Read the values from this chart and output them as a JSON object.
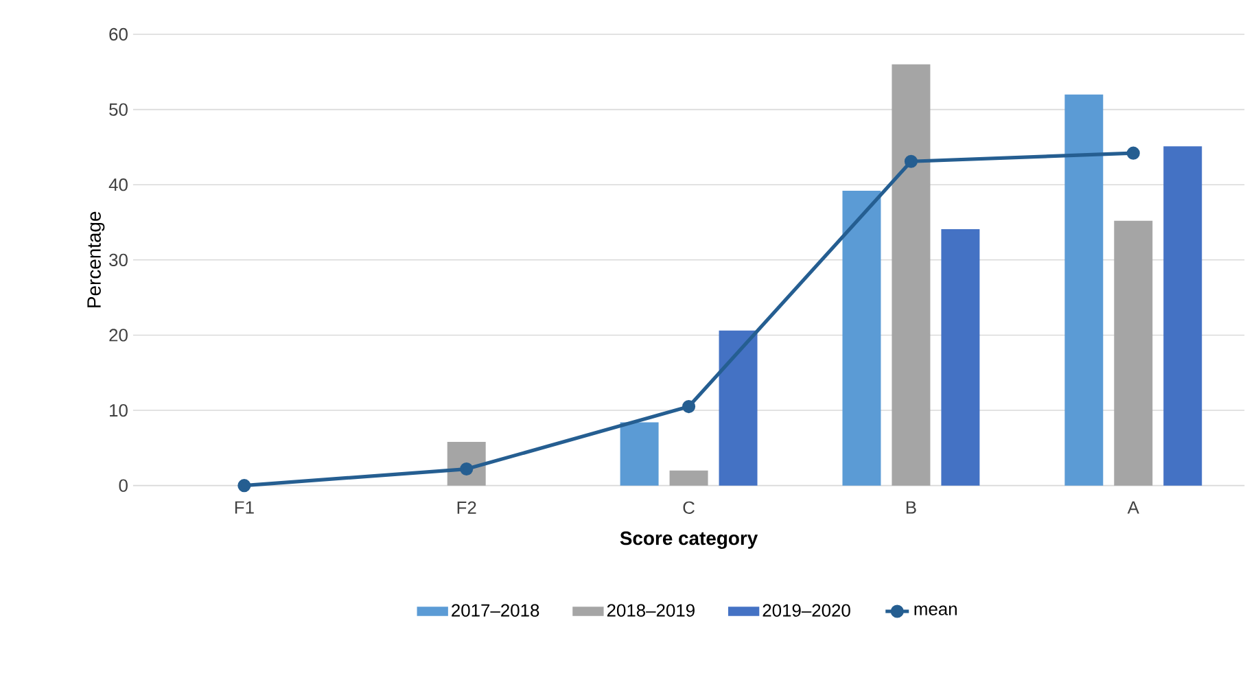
{
  "chart_data": {
    "type": "bar",
    "xlabel": "Score category",
    "ylabel": "Percentage",
    "categories": [
      "F1",
      "F2",
      "C",
      "B",
      "A"
    ],
    "series": [
      {
        "name": "2017–2018",
        "color": "#5b9bd5",
        "values": [
          0,
          0,
          8.4,
          39.2,
          52
        ]
      },
      {
        "name": "2018–2019",
        "color": "#a5a5a5",
        "values": [
          0,
          5.8,
          2,
          56,
          35.2
        ]
      },
      {
        "name": "2019–2020",
        "color": "#4472c4",
        "values": [
          0,
          0,
          20.6,
          34.1,
          45.1
        ]
      },
      {
        "name": "mean",
        "type": "line",
        "color": "#255e91",
        "marker": "circle",
        "values": [
          0,
          2.2,
          10.5,
          43.1,
          44.2
        ]
      }
    ],
    "ylim": [
      0,
      60
    ],
    "yticks": [
      0,
      10,
      20,
      30,
      40,
      50,
      60
    ],
    "grid": "y",
    "legend": "bottom"
  }
}
